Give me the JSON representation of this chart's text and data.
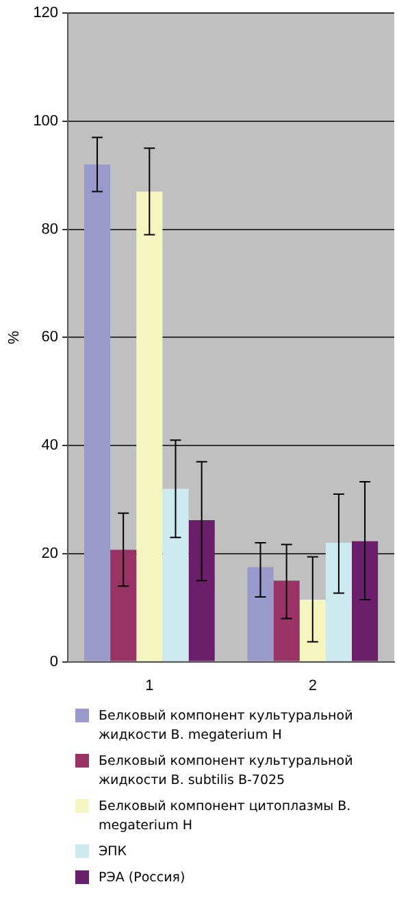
{
  "chart_data": {
    "type": "bar",
    "categories": [
      "1",
      "2"
    ],
    "ylabel": "%",
    "ylim": [
      0,
      120
    ],
    "yticks": [
      0,
      20,
      40,
      60,
      80,
      100,
      120
    ],
    "grid": "y",
    "legend": "bottom",
    "series": [
      {
        "name": "Белковый компонент культуральной жидкости B. megaterium H",
        "color": "#9999cc",
        "values": [
          92,
          17.5
        ],
        "errors": [
          [
            87,
            97
          ],
          [
            12,
            22
          ]
        ]
      },
      {
        "name": "Белковый компонент культуральной жидкости B. subtilis B-7025",
        "color": "#993366",
        "values": [
          20.7,
          15
        ],
        "errors": [
          [
            14,
            27.5
          ],
          [
            8,
            21.7
          ]
        ]
      },
      {
        "name": "Белковый компонент цитоплазмы B. megaterium H",
        "color": "#f5f5c0",
        "values": [
          87,
          11.5
        ],
        "errors": [
          [
            79,
            95
          ],
          [
            3.7,
            19.4
          ]
        ]
      },
      {
        "name": "ЭПК",
        "color": "#cceaf0",
        "values": [
          32,
          22
        ],
        "errors": [
          [
            23,
            41
          ],
          [
            12.7,
            31
          ]
        ]
      },
      {
        "name": "РЭА (Россия)",
        "color": "#6b1f6b",
        "values": [
          26.2,
          22.3
        ],
        "errors": [
          [
            15,
            37
          ],
          [
            11.5,
            33.3
          ]
        ]
      }
    ]
  }
}
